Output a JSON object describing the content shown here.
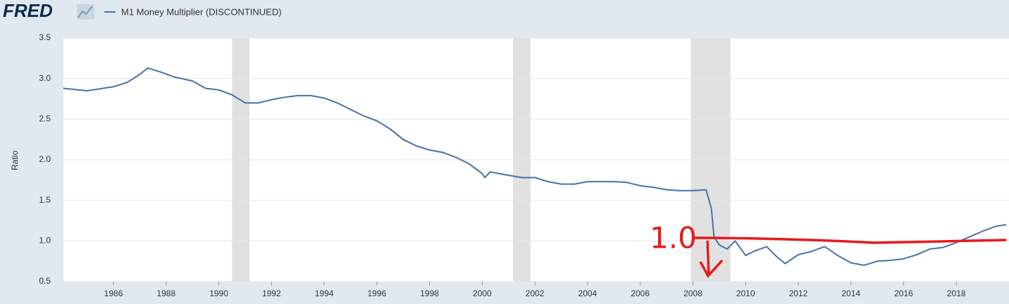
{
  "chart_data": {
    "type": "line",
    "source_logo": "FRED",
    "y_label": "Ratio",
    "annotation": "1.0",
    "grid": true,
    "xlim": [
      1984.1,
      2020.0
    ],
    "ylim": [
      0.5,
      3.5
    ],
    "xticks": [
      1986,
      1988,
      1990,
      1992,
      1994,
      1996,
      1998,
      2000,
      2002,
      2004,
      2006,
      2008,
      2010,
      2012,
      2014,
      2016,
      2018
    ],
    "yticks": [
      0.5,
      {
        "value": 1,
        "label": "1.0"
      },
      1.5,
      {
        "value": 2,
        "label": "2.0"
      },
      2.5,
      {
        "value": 3,
        "label": "3.0"
      },
      3.5
    ],
    "recessions": [
      [
        1990.5,
        1991.17
      ],
      [
        2001.17,
        2001.83
      ],
      [
        2007.92,
        2009.42
      ]
    ],
    "recession_color": "#e1e1e1",
    "x": [
      1984.1,
      1985.0,
      1986.0,
      1986.5,
      1987.0,
      1987.3,
      1987.8,
      1988.3,
      1989.0,
      1989.5,
      1990.0,
      1990.5,
      1991.0,
      1991.5,
      1992.0,
      1992.5,
      1993.0,
      1993.5,
      1994.0,
      1994.5,
      1995.0,
      1995.5,
      1996.0,
      1996.5,
      1997.0,
      1997.5,
      1998.0,
      1998.5,
      1999.0,
      1999.5,
      2000.0,
      2000.1,
      2000.3,
      2000.8,
      2001.5,
      2002.0,
      2002.5,
      2003.0,
      2003.5,
      2004.0,
      2005.0,
      2005.5,
      2006.0,
      2006.5,
      2007.0,
      2007.5,
      2008.0,
      2008.5,
      2008.7,
      2008.8,
      2009.0,
      2009.3,
      2009.6,
      2010.0,
      2010.3,
      2010.8,
      2011.2,
      2011.5,
      2012.0,
      2012.5,
      2013.0,
      2013.5,
      2014.0,
      2014.5,
      2015.0,
      2015.5,
      2016.0,
      2016.5,
      2017.0,
      2017.5,
      2018.0,
      2018.5,
      2019.0,
      2019.5,
      2019.9
    ],
    "series": [
      {
        "name": "M1 Money Multiplier (DISCONTINUED)",
        "color": "#4572a7",
        "values": [
          2.88,
          2.85,
          2.9,
          2.95,
          3.05,
          3.13,
          3.08,
          3.02,
          2.97,
          2.88,
          2.86,
          2.8,
          2.7,
          2.7,
          2.74,
          2.77,
          2.79,
          2.79,
          2.76,
          2.7,
          2.62,
          2.54,
          2.48,
          2.38,
          2.25,
          2.17,
          2.12,
          2.09,
          2.03,
          1.95,
          1.83,
          1.78,
          1.85,
          1.82,
          1.78,
          1.78,
          1.73,
          1.7,
          1.7,
          1.73,
          1.73,
          1.72,
          1.68,
          1.66,
          1.63,
          1.62,
          1.62,
          1.63,
          1.4,
          1.05,
          0.95,
          0.9,
          1.0,
          0.82,
          0.87,
          0.93,
          0.8,
          0.72,
          0.83,
          0.87,
          0.93,
          0.82,
          0.73,
          0.7,
          0.75,
          0.76,
          0.78,
          0.83,
          0.9,
          0.92,
          0.98,
          1.05,
          1.12,
          1.18,
          1.2
        ]
      }
    ]
  }
}
